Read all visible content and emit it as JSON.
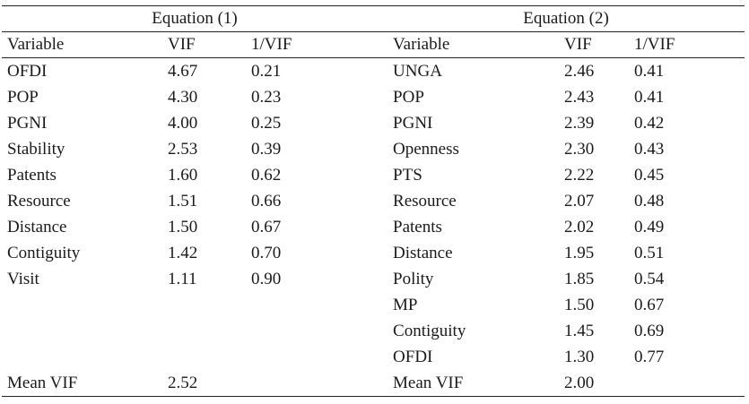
{
  "equation1": {
    "title": "Equation (1)",
    "headers": [
      "Variable",
      "VIF",
      "1/VIF"
    ],
    "rows": [
      [
        "OFDI",
        "4.67",
        "0.21"
      ],
      [
        "POP",
        "4.30",
        "0.23"
      ],
      [
        "PGNI",
        "4.00",
        "0.25"
      ],
      [
        "Stability",
        "2.53",
        "0.39"
      ],
      [
        "Patents",
        "1.60",
        "0.62"
      ],
      [
        "Resource",
        "1.51",
        "0.66"
      ],
      [
        "Distance",
        "1.50",
        "0.67"
      ],
      [
        "Contiguity",
        "1.42",
        "0.70"
      ],
      [
        "Visit",
        "1.11",
        "0.90"
      ]
    ],
    "mean_label": "Mean VIF",
    "mean_value": "2.52"
  },
  "equation2": {
    "title": "Equation (2)",
    "headers": [
      "Variable",
      "VIF",
      "1/VIF"
    ],
    "rows": [
      [
        "UNGA",
        "2.46",
        "0.41"
      ],
      [
        "POP",
        "2.43",
        "0.41"
      ],
      [
        "PGNI",
        "2.39",
        "0.42"
      ],
      [
        "Openness",
        "2.30",
        "0.43"
      ],
      [
        "PTS",
        "2.22",
        "0.45"
      ],
      [
        "Resource",
        "2.07",
        "0.48"
      ],
      [
        "Patents",
        "2.02",
        "0.49"
      ],
      [
        "Distance",
        "1.95",
        "0.51"
      ],
      [
        "Polity",
        "1.85",
        "0.54"
      ],
      [
        "MP",
        "1.50",
        "0.67"
      ],
      [
        "Contiguity",
        "1.45",
        "0.69"
      ],
      [
        "OFDI",
        "1.30",
        "0.77"
      ]
    ],
    "mean_label": "Mean VIF",
    "mean_value": "2.00"
  }
}
